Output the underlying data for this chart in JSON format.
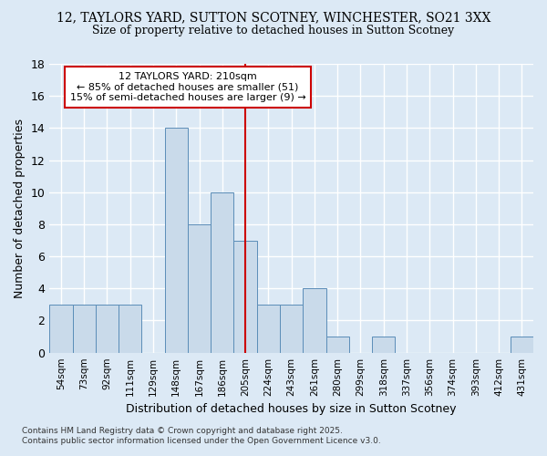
{
  "title_line1": "12, TAYLORS YARD, SUTTON SCOTNEY, WINCHESTER, SO21 3XX",
  "title_line2": "Size of property relative to detached houses in Sutton Scotney",
  "xlabel": "Distribution of detached houses by size in Sutton Scotney",
  "ylabel": "Number of detached properties",
  "footnote": "Contains HM Land Registry data © Crown copyright and database right 2025.\nContains public sector information licensed under the Open Government Licence v3.0.",
  "bin_labels": [
    "54sqm",
    "73sqm",
    "92sqm",
    "111sqm",
    "129sqm",
    "148sqm",
    "167sqm",
    "186sqm",
    "205sqm",
    "224sqm",
    "243sqm",
    "261sqm",
    "280sqm",
    "299sqm",
    "318sqm",
    "337sqm",
    "356sqm",
    "374sqm",
    "393sqm",
    "412sqm",
    "431sqm"
  ],
  "counts": [
    3,
    3,
    3,
    3,
    0,
    14,
    8,
    10,
    7,
    3,
    3,
    4,
    1,
    0,
    1,
    0,
    0,
    0,
    0,
    0,
    1
  ],
  "bar_color": "#c9daea",
  "bar_edge_color": "#5b8db8",
  "background_color": "#dce9f5",
  "grid_color": "#ffffff",
  "red_line_index": 8,
  "annotation_text": "12 TAYLORS YARD: 210sqm\n← 85% of detached houses are smaller (51)\n15% of semi-detached houses are larger (9) →",
  "annotation_box_color": "#ffffff",
  "annotation_box_edge_color": "#cc0000",
  "ylim": [
    0,
    18
  ],
  "yticks": [
    0,
    2,
    4,
    6,
    8,
    10,
    12,
    14,
    16,
    18
  ]
}
